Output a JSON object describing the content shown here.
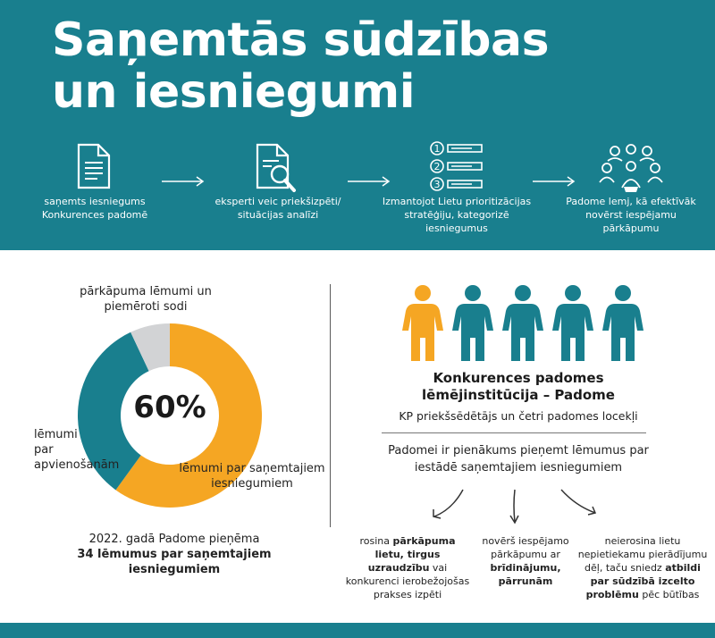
{
  "header": {
    "title_line1": "Saņemtās sūdzības",
    "title_line2": "un iesniegumi"
  },
  "process_steps": [
    {
      "icon": "document-icon",
      "text": "saņemts iesniegums Konkurences padomē"
    },
    {
      "icon": "document-search-icon",
      "text": "eksperti veic priekšizpēti/ situācijas analīzi"
    },
    {
      "icon": "numbered-list-icon",
      "list_numbers": [
        "1",
        "2",
        "3"
      ],
      "text": "Izmantojot Lietu prioritizācijas stratēģiju, kategorizē iesniegumus"
    },
    {
      "icon": "group-people-icon",
      "text": "Padome lemj, kā efektīvāk novērst iespējamu pārkāpumu"
    }
  ],
  "chart_data": {
    "type": "pie",
    "center_label": "60%",
    "slices": [
      {
        "label": "lēmumi par saņemtajiem iesniegumiem",
        "value": 60,
        "color": "#f5a623"
      },
      {
        "label": "lēmumi par apvienošanām",
        "value": 33,
        "color": "#197f8e"
      },
      {
        "label": "pārkāpuma lēmumi un piemēroti sodi",
        "value": 7,
        "color": "#d2d3d5"
      }
    ]
  },
  "summary": {
    "line1": "2022. gadā Padome pieņēma",
    "line2": "34 lēmumus par saņemtajiem iesniegumiem"
  },
  "board": {
    "title_line1": "Konkurences padomes",
    "title_line2": "lēmējinstitūcija – Padome",
    "members_text": "KP priekšsēdētājs un četri padomes locekļi",
    "duty_text": "Padomei ir pienākums pieņemt lēmumus par iestādē saņemtajiem iesniegumiem",
    "colors": {
      "highlight": "#f5a623",
      "member": "#197f8e"
    }
  },
  "outcomes": [
    {
      "before": "rosina ",
      "bold": "pārkāpuma lietu, tirgus uzraudzību",
      "after": " vai konkurenci ierobežojošas prakses izpēti"
    },
    {
      "before": "novērš iespējamo pārkāpumu ar ",
      "bold": "brīdinājumu, pārrunām",
      "after": ""
    },
    {
      "before": "neierosina lietu nepietiekamu pierādījumu dēļ, taču sniedz ",
      "bold": "atbildi par sūdzībā izcelto problēmu",
      "after": " pēc būtības"
    }
  ]
}
